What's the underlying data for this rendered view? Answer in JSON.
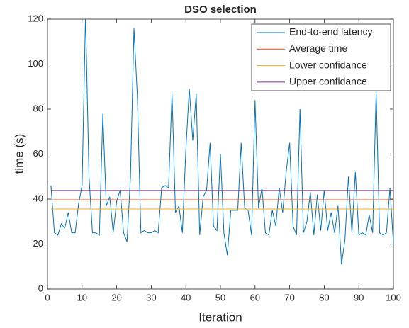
{
  "chart_data": {
    "type": "line",
    "title": "DSO selection",
    "xlabel": "Iteration",
    "ylabel": "time (s)",
    "xlim": [
      0,
      100
    ],
    "xticks": [
      0,
      10,
      20,
      30,
      40,
      50,
      60,
      70,
      80,
      90,
      100
    ],
    "ylim": [
      0,
      120
    ],
    "yticks": [
      0,
      20,
      40,
      60,
      80,
      100,
      120
    ],
    "legend": "upper right",
    "series": [
      {
        "name": "End-to-end latency",
        "color": "#0072bd",
        "x": [
          1,
          2,
          3,
          4,
          5,
          6,
          7,
          8,
          9,
          10,
          11,
          12,
          13,
          14,
          15,
          16,
          17,
          18,
          19,
          20,
          21,
          22,
          23,
          24,
          25,
          26,
          27,
          28,
          29,
          30,
          31,
          32,
          33,
          34,
          35,
          36,
          37,
          38,
          39,
          40,
          41,
          42,
          43,
          44,
          45,
          46,
          47,
          48,
          49,
          50,
          51,
          52,
          53,
          54,
          55,
          56,
          57,
          58,
          59,
          60,
          61,
          62,
          63,
          64,
          65,
          66,
          67,
          68,
          69,
          70,
          71,
          72,
          73,
          74,
          75,
          76,
          77,
          78,
          79,
          80,
          81,
          82,
          83,
          84,
          85,
          86,
          87,
          88,
          89,
          90,
          91,
          92,
          93,
          94,
          95,
          96,
          97,
          98,
          99,
          100
        ],
        "values": [
          46,
          25,
          24,
          29,
          27,
          34,
          25,
          25,
          38,
          46,
          122,
          50,
          25,
          25,
          24,
          78,
          37,
          41,
          25,
          39,
          44,
          25,
          21,
          50,
          116,
          85,
          25,
          26,
          25,
          25,
          26,
          25,
          45,
          46,
          45,
          87,
          34,
          37,
          25,
          62,
          89,
          66,
          87,
          24,
          41,
          44,
          65,
          28,
          26,
          60,
          25,
          15,
          35,
          35,
          35,
          65,
          36,
          35,
          24,
          84,
          36,
          45,
          25,
          24,
          35,
          28,
          45,
          34,
          52,
          65,
          28,
          24,
          80,
          25,
          30,
          43,
          24,
          42,
          26,
          44,
          26,
          34,
          25,
          37,
          11,
          22,
          50,
          25,
          52,
          24,
          25,
          24,
          33,
          25,
          88,
          25,
          24,
          25,
          45,
          20
        ]
      },
      {
        "name": "Average time",
        "color": "#d95319",
        "x": [
          1,
          100
        ],
        "values": [
          39.7,
          39.7
        ]
      },
      {
        "name": "Lower confidance",
        "color": "#edb120",
        "x": [
          1,
          100
        ],
        "values": [
          35.6,
          35.6
        ]
      },
      {
        "name": "Upper confidance",
        "color": "#7e2f8e",
        "x": [
          1,
          100
        ],
        "values": [
          43.8,
          43.8
        ]
      }
    ]
  }
}
